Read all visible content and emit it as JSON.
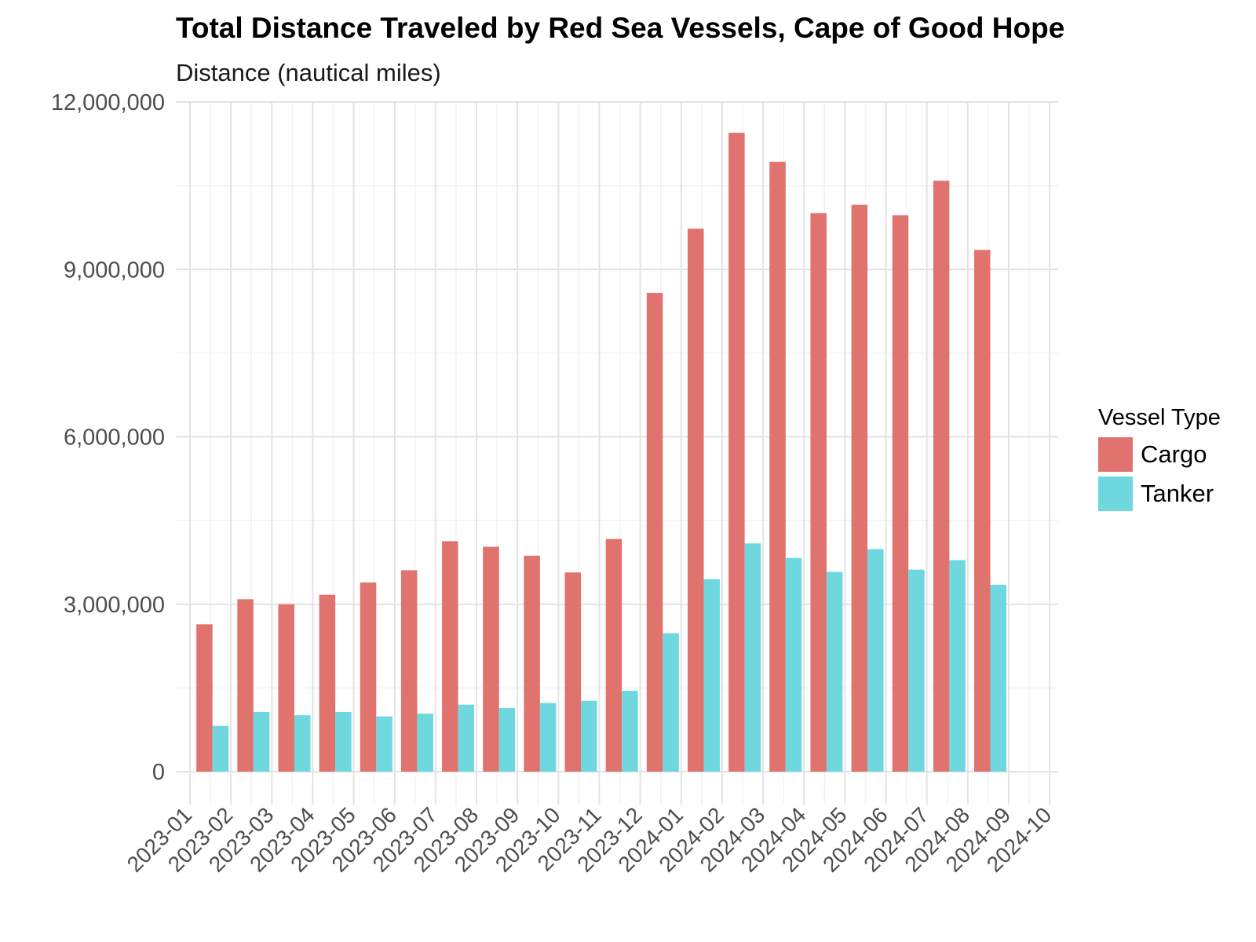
{
  "chart_data": {
    "type": "bar",
    "title": "Total Distance Traveled by Red Sea Vessels, Cape of Good Hope",
    "subtitle": "Distance (nautical miles)",
    "xlabel": "",
    "ylabel": "",
    "x_tick_labels": [
      "2023-01",
      "2023-02",
      "2023-03",
      "2023-04",
      "2023-05",
      "2023-06",
      "2023-07",
      "2023-08",
      "2023-09",
      "2023-10",
      "2023-11",
      "2023-12",
      "2024-01",
      "2024-02",
      "2024-03",
      "2024-04",
      "2024-05",
      "2024-06",
      "2024-07",
      "2024-08",
      "2024-09",
      "2024-10"
    ],
    "categories": [
      "2023-02",
      "2023-03",
      "2023-04",
      "2023-05",
      "2023-06",
      "2023-07",
      "2023-08",
      "2023-09",
      "2023-10",
      "2023-11",
      "2023-12",
      "2024-01",
      "2024-02",
      "2024-03",
      "2024-04",
      "2024-05",
      "2024-06",
      "2024-07",
      "2024-08",
      "2024-09"
    ],
    "y_ticks": [
      0,
      3000000,
      6000000,
      9000000,
      12000000
    ],
    "y_tick_labels": [
      "0",
      "3,000,000",
      "6,000,000",
      "9,000,000",
      "12,000,000"
    ],
    "ylim": [
      -550000,
      12000000
    ],
    "legend_title": "Vessel Type",
    "legend_position": "right",
    "grid": true,
    "series": [
      {
        "name": "Cargo",
        "color": "#e0736e",
        "values": [
          2640000,
          3090000,
          3000000,
          3170000,
          3390000,
          3610000,
          4130000,
          4030000,
          3870000,
          3570000,
          4170000,
          8580000,
          9730000,
          11450000,
          10930000,
          10010000,
          10160000,
          9970000,
          10590000,
          9350000
        ]
      },
      {
        "name": "Tanker",
        "color": "#6fd8df",
        "values": [
          820000,
          1070000,
          1010000,
          1070000,
          990000,
          1040000,
          1200000,
          1140000,
          1230000,
          1270000,
          1450000,
          2480000,
          3450000,
          4090000,
          3830000,
          3580000,
          3990000,
          3620000,
          3790000,
          3350000
        ]
      }
    ]
  }
}
